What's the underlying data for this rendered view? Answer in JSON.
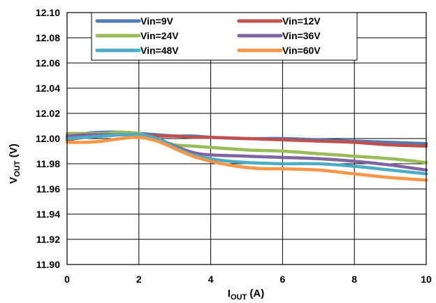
{
  "chart_data": {
    "type": "line",
    "title": "",
    "xlabel": {
      "main": "I",
      "sub": "OUT",
      "unit": " (A)"
    },
    "ylabel": {
      "main": "V",
      "sub": "OUT",
      "unit": " (V)"
    },
    "xlim": [
      0,
      10
    ],
    "ylim": [
      11.9,
      12.1
    ],
    "xticks": [
      0,
      2,
      4,
      6,
      8,
      10
    ],
    "yticks": [
      11.9,
      11.92,
      11.94,
      11.96,
      11.98,
      12.0,
      12.02,
      12.04,
      12.06,
      12.08,
      12.1
    ],
    "grid": true,
    "legend_position": "top",
    "series": [
      {
        "name": "Vin=9V",
        "color": "#4f7ab5",
        "x": [
          0,
          0.5,
          1,
          1.5,
          2,
          2.5,
          3,
          3.5,
          4,
          5,
          6,
          7,
          8,
          9,
          10
        ],
        "y": [
          12.001,
          12.004,
          12.005,
          12.005,
          12.004,
          12.003,
          12.002,
          12.002,
          12.001,
          12.0,
          12.0,
          11.999,
          11.998,
          11.997,
          11.996
        ]
      },
      {
        "name": "Vin=12V",
        "color": "#c0504d",
        "x": [
          0,
          0.5,
          1,
          1.5,
          2,
          2.5,
          3,
          3.5,
          4,
          5,
          6,
          7,
          8,
          9,
          10
        ],
        "y": [
          11.999,
          12.001,
          12.002,
          12.003,
          12.003,
          12.002,
          12.002,
          12.001,
          12.001,
          12.0,
          11.999,
          11.998,
          11.997,
          11.995,
          11.994
        ]
      },
      {
        "name": "Vin=24V",
        "color": "#9bbb59",
        "x": [
          0,
          0.5,
          1,
          1.5,
          2,
          2.5,
          3,
          3.5,
          4,
          5,
          6,
          7,
          8,
          9,
          10
        ],
        "y": [
          12.004,
          12.004,
          12.004,
          12.005,
          12.004,
          11.999,
          11.995,
          11.994,
          11.993,
          11.991,
          11.99,
          11.988,
          11.986,
          11.984,
          11.981
        ]
      },
      {
        "name": "Vin=36V",
        "color": "#8064a2",
        "x": [
          0,
          0.5,
          1,
          1.5,
          2,
          2.5,
          3,
          3.5,
          4,
          5,
          6,
          7,
          8,
          9,
          10
        ],
        "y": [
          12.002,
          12.003,
          12.003,
          12.003,
          12.003,
          12.0,
          11.994,
          11.989,
          11.987,
          11.986,
          11.985,
          11.984,
          11.982,
          11.979,
          11.975
        ]
      },
      {
        "name": "Vin=48V",
        "color": "#4bacc6",
        "x": [
          0,
          0.5,
          1,
          1.5,
          2,
          2.5,
          3,
          3.5,
          4,
          4.5,
          5,
          6,
          7,
          8,
          9,
          10
        ],
        "y": [
          12.0,
          12.001,
          12.002,
          12.003,
          12.003,
          12.0,
          11.993,
          11.987,
          11.984,
          11.982,
          11.981,
          11.98,
          11.98,
          11.978,
          11.975,
          11.972
        ]
      },
      {
        "name": "Vin=60V",
        "color": "#f79646",
        "x": [
          0,
          0.5,
          1,
          1.5,
          2,
          2.5,
          3,
          3.5,
          4,
          4.5,
          5,
          5.5,
          6,
          7,
          8,
          9,
          10
        ],
        "y": [
          11.997,
          11.997,
          11.998,
          12.0,
          12.001,
          11.998,
          11.992,
          11.986,
          11.982,
          11.979,
          11.977,
          11.976,
          11.976,
          11.975,
          11.972,
          11.969,
          11.967
        ]
      }
    ]
  }
}
